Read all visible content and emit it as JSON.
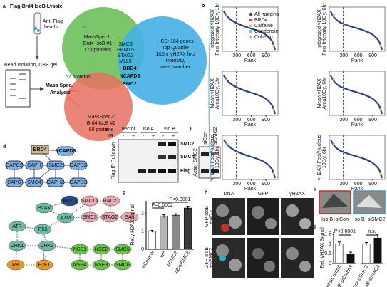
{
  "panel_labels": [
    "a",
    "b",
    "c",
    "d",
    "e",
    "f",
    "g",
    "h",
    "i",
    "j"
  ],
  "a": {
    "title": "Flag-Brd4 IsoB Lysate",
    "beads": [
      "Anti-Flag",
      "beads"
    ],
    "isolation": "Bead Isolation, CBB gel",
    "analysis": [
      "Mass Spec.",
      "Analysis"
    ]
  },
  "c": {
    "ms1": [
      "MassSpec1:",
      "Brd4 IsoB #1",
      "173 proteins"
    ],
    "overlap": "57 proteins",
    "ms2": [
      "MassSpec2:",
      "Brd4 IsoB #2",
      "80 proteins"
    ],
    "shared_small": [
      "SMC3",
      "PRMT5",
      "STAG2",
      "MLL5"
    ],
    "shared_bold": [
      "BRD4",
      "NCAPD3",
      "SMC2"
    ],
    "hcs": [
      "HCS: 184 genes",
      "Top Quartile",
      "1&6hr γH2AX foci",
      "intensity,",
      "area, number"
    ]
  },
  "b": {
    "legend": [
      {
        "name": "All hairpins",
        "color": "#2c3e91"
      },
      {
        "name": "BRD4",
        "color": "#d63b8f"
      },
      {
        "name": "Caffeine",
        "color": "#e8d53a"
      },
      {
        "name": "Condensin",
        "color": "#5fc3e4"
      },
      {
        "name": "Cohesin",
        "color": "#f2a3a8"
      }
    ],
    "xlabel": "Rank",
    "xlim": [
      0,
      1150
    ],
    "xticks": [
      300,
      600,
      900
    ],
    "cutoff": 288,
    "plots": [
      {
        "ylabel": [
          "Integrated γH2AX",
          "Foci Intensity 10Gy, 1hr"
        ]
      },
      {
        "ylabel": [
          "Integrated γH2AX",
          "Foci Intensity 10Gy, 6hr"
        ]
      },
      {
        "ylabel": [
          "Mean γH2AX",
          "Area10Gy, 1hr"
        ]
      },
      {
        "ylabel": [
          "Mean γH2AX",
          "Area10Gy, 6hr"
        ]
      },
      {
        "ylabel": [
          "γH2AX Foci/Nucleus",
          "10Gy, 1hr"
        ]
      },
      {
        "ylabel": [
          "γH2AX Foci/Nucleus",
          "10Gy, 6hr"
        ]
      }
    ]
  },
  "d": {
    "top_nodes": [
      "BRD4",
      "NCAPD3",
      "CAPG2",
      "CAPH",
      "SMC2",
      "CAPD2",
      "CAPG",
      "SMC4",
      "CAPH2",
      "CAPD3"
    ],
    "bottom_nodes": [
      "MDC1",
      "H2AX",
      "ATM",
      "ATR",
      "P53",
      "CHK1",
      "CHK2",
      "RB",
      "E2F1",
      "SMC1A",
      "RAD21",
      "SMC3",
      "STAG2",
      "SA1",
      "NSE1",
      "NSE2",
      "SMC5",
      "NSE4",
      "NSE3",
      "SMC6"
    ]
  },
  "e": {
    "groups": [
      "Vector",
      "Iso A",
      "Iso B"
    ],
    "ir": "IR:",
    "signs": [
      "-",
      "+",
      "-",
      "+",
      "-",
      "+"
    ],
    "bands": [
      "SMC2",
      "SMC4",
      "Flag"
    ],
    "side": "Flag IP Pulldown"
  },
  "f": {
    "lanes": [
      "siCon",
      "siSMC2"
    ],
    "bands": [
      "SMC2",
      "Actin"
    ]
  },
  "g": {
    "ylabel": "Rel.γ H2AX Signal",
    "categories": [
      "siControl",
      "siB",
      "siSMC2",
      "siB/siSMC2"
    ],
    "values": [
      1.0,
      1.85,
      1.9,
      2.3
    ],
    "errors": [
      0.05,
      0.08,
      0.08,
      0.1
    ],
    "colors": [
      "#ffffff",
      "#b5b5b5",
      "#8a8a8a",
      "#3a3a3a"
    ],
    "ylim": [
      0,
      2.7
    ],
    "yticks": [
      0,
      1,
      2
    ],
    "pvalues": [
      "P=0.0002",
      "P<0.0001"
    ]
  },
  "h": {
    "columns": [
      "DNA",
      "GFP",
      "γH2AX"
    ],
    "rows": [
      [
        "GFP IsoB",
        "+siCon"
      ],
      [
        "GFP IsoB",
        "+siSMC2"
      ]
    ]
  },
  "i": {
    "labels": [
      "Iso B+siCon",
      "Iso B+siSMC2"
    ]
  },
  "j": {
    "ylabel": "Rel. γH2AX Signal",
    "ylim": [
      0,
      1.6
    ],
    "yticks": [
      0,
      0.5,
      1,
      1.5
    ],
    "colors": [
      "#ffffff",
      "#111111"
    ],
    "groups": [
      {
        "categories": [
          "Control siControl",
          "IsoB siControl"
        ],
        "values": [
          1.0,
          0.5
        ],
        "errors": [
          0.1,
          0.08
        ],
        "pvalue": "P<0.0001"
      },
      {
        "categories": [
          "Control siSMC2",
          "IsoB siSMC2"
        ],
        "values": [
          1.0,
          1.3
        ],
        "errors": [
          0.07,
          0.2
        ],
        "pvalue": "n.s."
      }
    ]
  }
}
